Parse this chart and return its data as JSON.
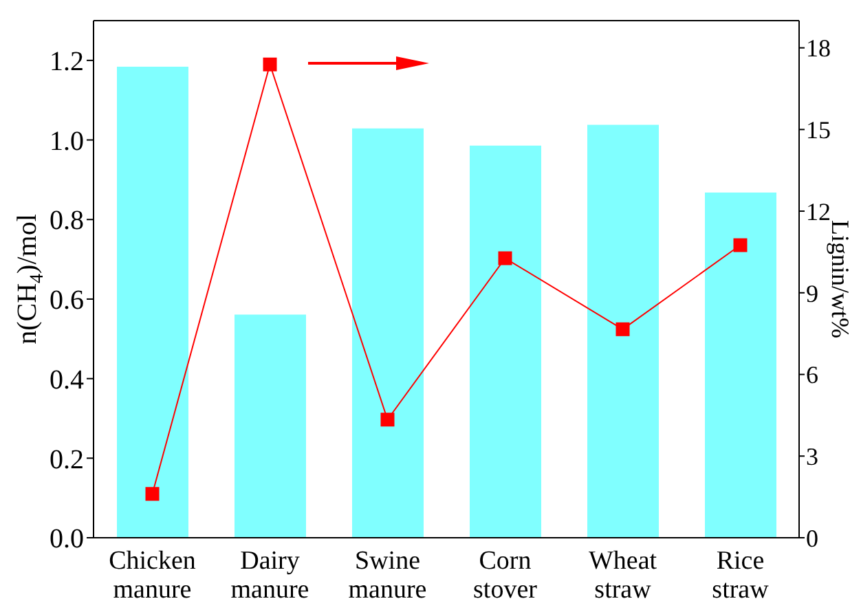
{
  "chart_data": {
    "type": "bar",
    "categories": [
      "Chicken manure",
      "Dairy manure",
      "Swine manure",
      "Corn stover",
      "Wheat straw",
      "Rice straw"
    ],
    "ylabel": "n(CH$_{4}$)/mol",
    "y2label": "Lignin/wt%",
    "series": [
      {
        "color": "#80ffff",
        "values": [
          1.184,
          0.561,
          1.029,
          0.986,
          1.038,
          0.868
        ]
      },
      {
        "type": "line",
        "axis": "y2",
        "color": "#ff0000",
        "marker": "square",
        "values": [
          1.61,
          17.39,
          4.34,
          10.27,
          7.66,
          10.75
        ]
      }
    ],
    "ylim": [
      0,
      1.3
    ],
    "yticks": [
      {
        "value": 0,
        "label": "0.0"
      },
      {
        "value": 0.2,
        "label": "0.2"
      },
      {
        "value": 0.4,
        "label": "0.4"
      },
      {
        "value": 0.6,
        "label": "0.6"
      },
      {
        "value": 0.8,
        "label": "0.8"
      },
      {
        "value": 1,
        "label": "1.0"
      },
      {
        "value": 1.2,
        "label": "1.2"
      }
    ],
    "y2lim": [
      0,
      19
    ],
    "y2ticks": [
      0,
      3,
      6,
      9,
      12,
      15,
      18
    ],
    "grid": false,
    "legend": false
  }
}
